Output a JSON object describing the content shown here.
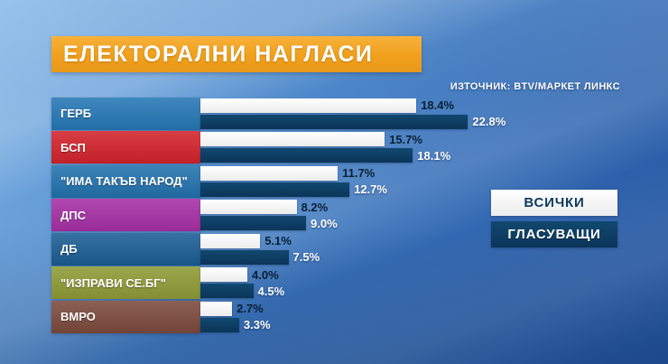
{
  "title": "ЕЛЕКТОРАЛНИ НАГЛАСИ",
  "source": "ИЗТОЧНИК: BTV/МАРКЕТ ЛИНКС",
  "legend": {
    "all_label": "ВСИЧКИ",
    "voters_label": "ГЛАСУВАЩИ"
  },
  "colors": {
    "title_bg": "#F0A01C",
    "bar_all": "#F2F2F2",
    "bar_voters": "#0D3E63",
    "background_blue": "#3A74BC"
  },
  "chart_data": {
    "type": "bar",
    "orientation": "horizontal",
    "title": "ЕЛЕКТОРАЛНИ НАГЛАСИ",
    "unit": "%",
    "xlim": [
      0,
      25
    ],
    "grid": false,
    "legend_position": "right",
    "categories": [
      "ГЕРБ",
      "БСП",
      "\"ИМА ТАКЪВ НАРОД\"",
      "ДПС",
      "ДБ",
      "\"ИЗПРАВИ СЕ.БГ\"",
      "ВМРО"
    ],
    "category_colors": [
      "#2577B5",
      "#D2232A",
      "#2272AE",
      "#A62FA6",
      "#1A5E94",
      "#8E9B35",
      "#7C4A3C"
    ],
    "series": [
      {
        "name": "ВСИЧКИ",
        "values": [
          18.4,
          15.7,
          11.7,
          8.2,
          5.1,
          4.0,
          2.7
        ],
        "labels": [
          "18.4%",
          "15.7%",
          "11.7%",
          "8.2%",
          "5.1%",
          "4.0%",
          "2.7%"
        ]
      },
      {
        "name": "ГЛАСУВАЩИ",
        "values": [
          22.8,
          18.1,
          12.7,
          9.0,
          7.5,
          4.5,
          3.3
        ],
        "labels": [
          "22.8%",
          "18.1%",
          "12.7%",
          "9.0%",
          "7.5%",
          "4.5%",
          "3.3%"
        ]
      }
    ]
  }
}
